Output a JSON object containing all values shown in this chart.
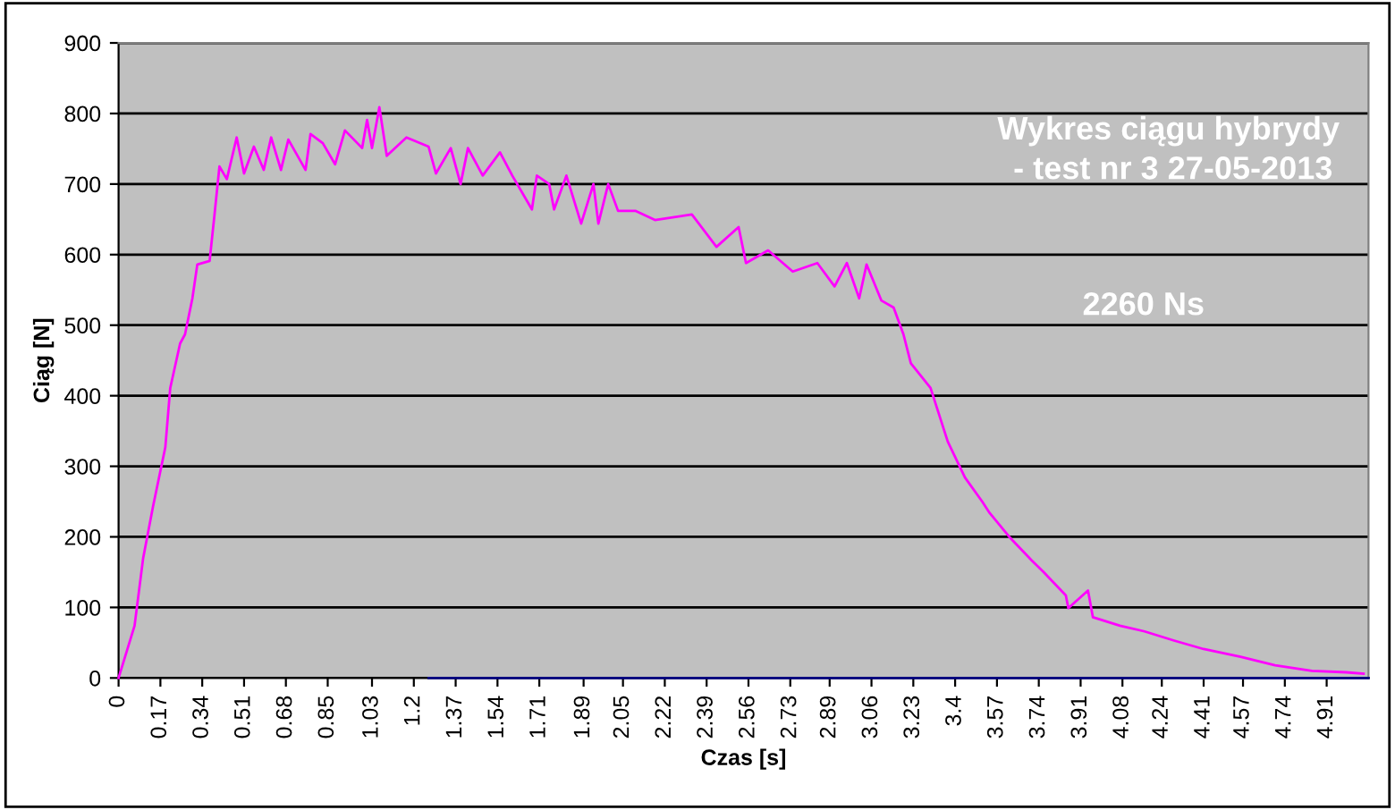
{
  "chart_data": {
    "type": "line",
    "title": "Wykres ciągu hybrydy\n - test nr 3 27-05-2013",
    "xlabel": "Czas [s]",
    "ylabel": "Ciąg [N]",
    "annotations": [
      "2260 Ns"
    ],
    "xlim": [
      0,
      5.08
    ],
    "xticks": [
      0,
      0.17,
      0.34,
      0.51,
      0.68,
      0.85,
      1.03,
      1.2,
      1.37,
      1.54,
      1.71,
      1.89,
      2.05,
      2.22,
      2.39,
      2.56,
      2.73,
      2.89,
      3.06,
      3.23,
      3.4,
      3.57,
      3.74,
      3.91,
      4.08,
      4.24,
      4.41,
      4.57,
      4.74,
      4.91
    ],
    "ylim": [
      0,
      900
    ],
    "yticks": [
      0,
      100,
      200,
      300,
      400,
      500,
      600,
      700,
      800,
      900
    ],
    "grid": "y",
    "legend": false,
    "series": [
      {
        "color": "#ff00ff",
        "x": [
          0,
          0.065,
          0.1,
          0.14,
          0.19,
          0.21,
          0.25,
          0.27,
          0.3,
          0.32,
          0.37,
          0.39,
          0.41,
          0.44,
          0.48,
          0.51,
          0.55,
          0.59,
          0.62,
          0.66,
          0.69,
          0.76,
          0.78,
          0.83,
          0.88,
          0.92,
          0.99,
          1.01,
          1.03,
          1.06,
          1.09,
          1.17,
          1.26,
          1.29,
          1.35,
          1.39,
          1.42,
          1.48,
          1.55,
          1.6,
          1.68,
          1.7,
          1.75,
          1.77,
          1.82,
          1.88,
          1.93,
          1.95,
          1.99,
          2.03,
          2.1,
          2.18,
          2.33,
          2.43,
          2.52,
          2.55,
          2.64,
          2.74,
          2.84,
          2.91,
          2.96,
          3.01,
          3.04,
          3.1,
          3.15,
          3.19,
          3.22,
          3.3,
          3.37,
          3.44,
          3.51,
          3.54,
          3.62,
          3.71,
          3.76,
          3.85,
          3.86,
          3.94,
          3.96,
          4.07,
          4.17,
          4.29,
          4.41,
          4.56,
          4.7,
          4.85,
          4.99,
          5.06
        ],
        "values": [
          0,
          74,
          170,
          243,
          327,
          411,
          474,
          487,
          538,
          586,
          591,
          657,
          725,
          707,
          766,
          715,
          753,
          720,
          766,
          720,
          763,
          720,
          771,
          758,
          728,
          776,
          751,
          791,
          751,
          809,
          740,
          766,
          753,
          715,
          751,
          700,
          751,
          712,
          745,
          712,
          664,
          712,
          700,
          664,
          712,
          644,
          700,
          644,
          700,
          662,
          662,
          649,
          657,
          611,
          639,
          588,
          606,
          576,
          588,
          555,
          588,
          538,
          586,
          535,
          525,
          487,
          446,
          411,
          335,
          284,
          250,
          234,
          200,
          167,
          150,
          117,
          99,
          124,
          86,
          74,
          66,
          53,
          41,
          30,
          18,
          10,
          8,
          6
        ]
      },
      {
        "color": "#000080",
        "x": [
          1.26,
          5.08
        ],
        "values": [
          0,
          0
        ]
      }
    ]
  }
}
